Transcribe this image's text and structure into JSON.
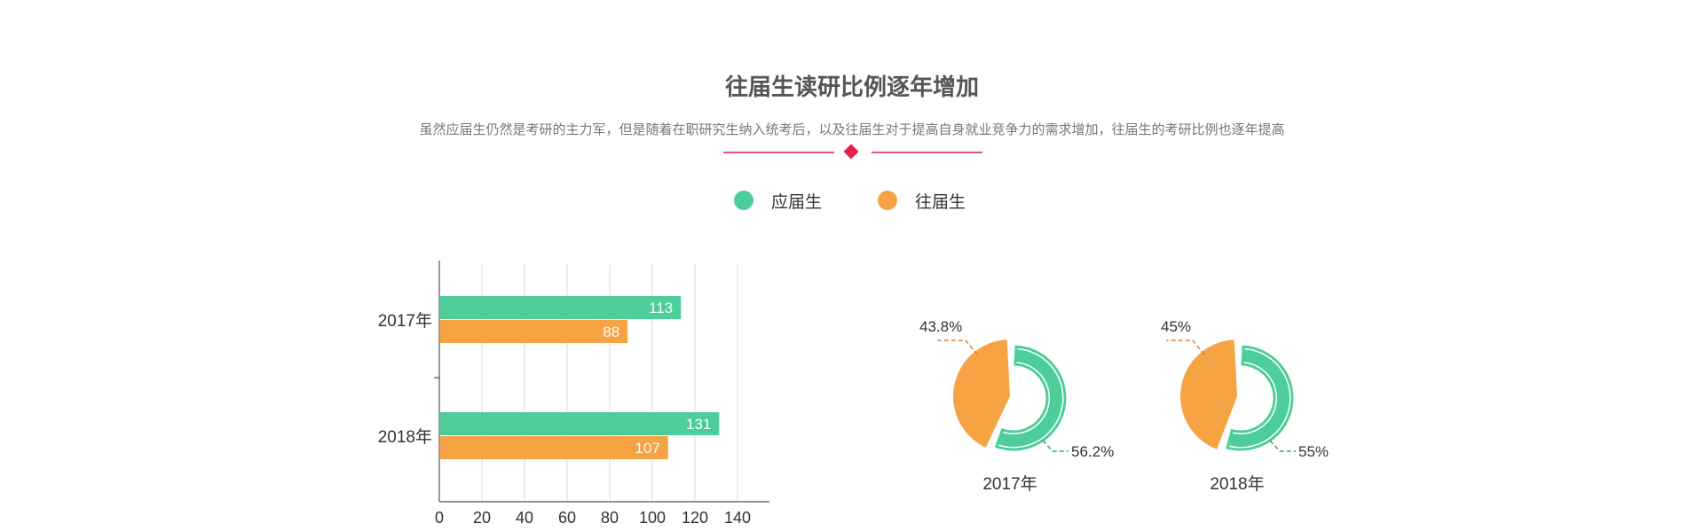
{
  "header": {
    "title": "往届生读研比例逐年增加",
    "subtitle": "虽然应届生仍然是考研的主力军，但是随着在职研究生纳入统考后，以及往届生对于提高自身就业竞争力的需求增加，往届生的考研比例也逐年提高"
  },
  "legend": [
    {
      "label": "应届生",
      "color": "#4ccd9a"
    },
    {
      "label": "往届生",
      "color": "#f6a344"
    }
  ],
  "chart_data": [
    {
      "type": "bar",
      "orientation": "horizontal",
      "categories": [
        "2017年",
        "2018年"
      ],
      "series": [
        {
          "name": "应届生",
          "values": [
            113,
            131
          ],
          "color": "#4ccd9a"
        },
        {
          "name": "往届生",
          "values": [
            88,
            107
          ],
          "color": "#f6a344"
        }
      ],
      "xlim": [
        0,
        155
      ],
      "xticks": [
        0,
        20,
        40,
        60,
        80,
        100,
        120,
        140
      ],
      "grid": true,
      "data_labels": true
    },
    {
      "type": "pie",
      "style": "donut",
      "label": "2017年",
      "slices": [
        {
          "name": "应届生",
          "value": 56.2,
          "label": "56.2%",
          "color": "#4ccd9a"
        },
        {
          "name": "往届生",
          "value": 43.8,
          "label": "43.8%",
          "color": "#f6a344"
        }
      ]
    },
    {
      "type": "pie",
      "style": "donut",
      "label": "2018年",
      "slices": [
        {
          "name": "应届生",
          "value": 55,
          "label": "55%",
          "color": "#4ccd9a"
        },
        {
          "name": "往届生",
          "value": 45,
          "label": "45%",
          "color": "#f6a344"
        }
      ]
    }
  ]
}
